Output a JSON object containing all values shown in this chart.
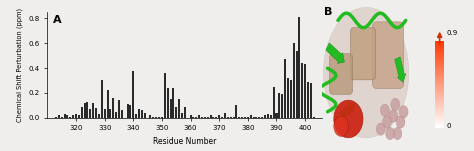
{
  "residues": [
    313,
    314,
    315,
    316,
    317,
    318,
    319,
    320,
    321,
    322,
    323,
    324,
    325,
    326,
    327,
    328,
    329,
    330,
    331,
    332,
    333,
    334,
    335,
    336,
    337,
    338,
    339,
    340,
    341,
    342,
    343,
    344,
    345,
    346,
    347,
    348,
    349,
    350,
    351,
    352,
    353,
    354,
    355,
    356,
    357,
    358,
    359,
    360,
    361,
    362,
    363,
    364,
    365,
    366,
    367,
    368,
    369,
    370,
    371,
    372,
    373,
    374,
    375,
    376,
    377,
    378,
    379,
    380,
    381,
    382,
    383,
    384,
    385,
    386,
    387,
    388,
    389,
    390,
    391,
    392,
    393,
    394,
    395,
    396,
    397,
    398,
    399,
    400,
    401,
    402,
    403,
    404
  ],
  "values": [
    0.01,
    0.02,
    0.01,
    0.03,
    0.02,
    0.01,
    0.02,
    0.03,
    0.02,
    0.09,
    0.12,
    0.13,
    0.07,
    0.12,
    0.08,
    0.03,
    0.3,
    0.07,
    0.22,
    0.07,
    0.16,
    0.05,
    0.14,
    0.06,
    0.0,
    0.11,
    0.1,
    0.38,
    0.03,
    0.07,
    0.06,
    0.04,
    0.0,
    0.02,
    0.01,
    0.01,
    0.01,
    0.01,
    0.36,
    0.24,
    0.15,
    0.24,
    0.09,
    0.15,
    0.04,
    0.09,
    0.0,
    0.02,
    0.01,
    0.01,
    0.02,
    0.01,
    0.01,
    0.01,
    0.02,
    0.01,
    0.01,
    0.02,
    0.01,
    0.04,
    0.01,
    0.01,
    0.01,
    0.1,
    0.01,
    0.01,
    0.01,
    0.01,
    0.02,
    0.01,
    0.01,
    0.01,
    0.01,
    0.02,
    0.03,
    0.02,
    0.25,
    0.04,
    0.2,
    0.19,
    0.47,
    0.32,
    0.3,
    0.6,
    0.54,
    0.81,
    0.44,
    0.43,
    0.29,
    0.28,
    0.01,
    0.0
  ],
  "xlabel": "Residue Number",
  "ylabel": "Chemical Shift Perturbation (ppm)",
  "panel_label_A": "A",
  "panel_label_B": "B",
  "xlim": [
    310,
    406
  ],
  "ylim": [
    0.0,
    0.85
  ],
  "yticks": [
    0.0,
    0.2,
    0.4,
    0.6,
    0.8
  ],
  "xticks": [
    320,
    330,
    340,
    350,
    360,
    370,
    380,
    390,
    400
  ],
  "bar_color": "#2a2a2a",
  "bar_width": 0.7,
  "background_color": "#f0eeec",
  "colorbar_label_high": "0.9",
  "colorbar_label_low": "0"
}
